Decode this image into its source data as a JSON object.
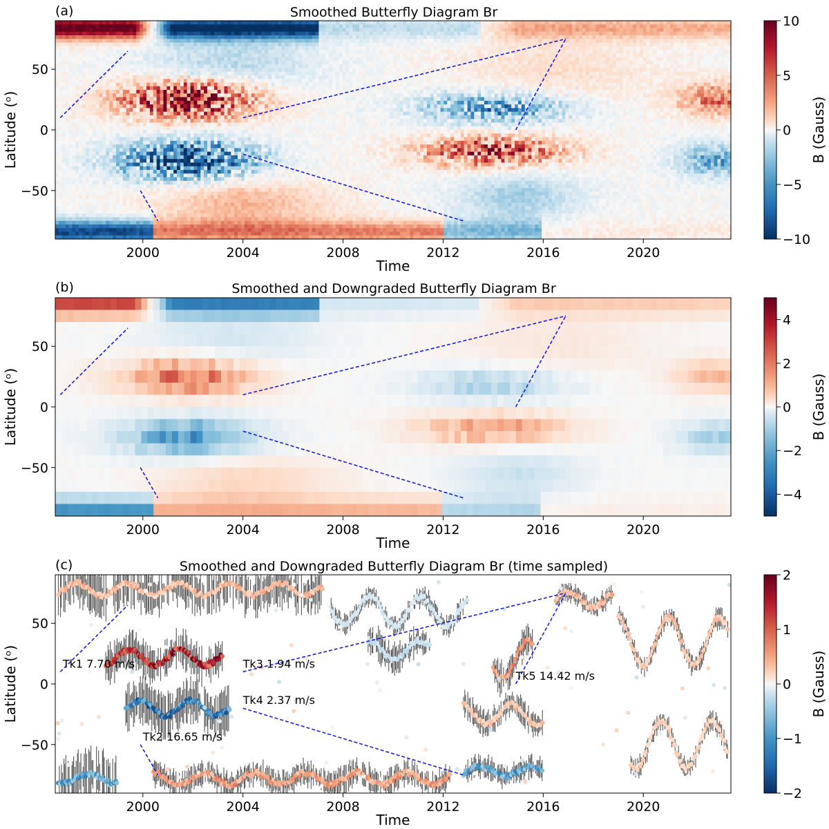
{
  "figure": {
    "panel_a": {
      "label": "(a)",
      "title": "Smoothed Butterfly Diagram Br",
      "xlabel": "Time",
      "ylabel": "Latitude (ᵒ)",
      "xticks": [
        "2000",
        "2004",
        "2008",
        "2012",
        "2016",
        "2020"
      ],
      "yticks": [
        "50",
        "0",
        "−50"
      ],
      "colorbar": {
        "label": "B (Gauss)",
        "ticks": [
          "10",
          "5",
          "0",
          "−5",
          "−10"
        ]
      }
    },
    "panel_b": {
      "label": "(b)",
      "title": "Smoothed and Downgraded Butterfly Diagram Br",
      "xlabel": "Time",
      "ylabel": "Latitude (ᵒ)",
      "xticks": [
        "2000",
        "2004",
        "2008",
        "2012",
        "2016",
        "2020"
      ],
      "yticks": [
        "50",
        "0",
        "−50"
      ],
      "colorbar": {
        "label": "B (Gauss)",
        "ticks": [
          "4",
          "2",
          "0",
          "−2",
          "−4"
        ]
      }
    },
    "panel_c": {
      "label": "(c)",
      "title": "Smoothed and Downgraded Butterfly Diagram Br (time sampled)",
      "xlabel": "Time",
      "ylabel": "Latitude (ᵒ)",
      "xticks": [
        "2000",
        "2004",
        "2008",
        "2012",
        "2016",
        "2020"
      ],
      "yticks": [
        "50",
        "0",
        "−50"
      ],
      "colorbar": {
        "label": "B (Gauss)",
        "ticks": [
          "2",
          "1",
          "0",
          "−1",
          "−2"
        ]
      },
      "annotations": [
        "Tk1 7.70 m/s",
        "Tk2 16.65 m/s",
        "Tk3 1.94 m/s",
        "Tk4 2.37 m/s",
        "Tk5 14.42 m/s"
      ]
    }
  },
  "chart_data": [
    {
      "type": "heatmap",
      "panel": "a",
      "title": "Smoothed Butterfly Diagram Br",
      "xlabel": "Time",
      "ylabel": "Latitude (ᵒ)",
      "xlim": [
        1996.5,
        2023.5
      ],
      "ylim": [
        -90,
        90
      ],
      "clim": [
        -10,
        10
      ],
      "cmap": "RdBu_r",
      "tracks": [
        {
          "name": "Tk1",
          "x": [
            1996.7,
            1999.4
          ],
          "y": [
            10,
            65
          ]
        },
        {
          "name": "Tk2",
          "x": [
            1999.9,
            2000.6
          ],
          "y": [
            -50,
            -75
          ]
        },
        {
          "name": "Tk3",
          "x": [
            2004.0,
            2016.9
          ],
          "y": [
            10,
            75
          ]
        },
        {
          "name": "Tk4",
          "x": [
            2004.0,
            2012.8
          ],
          "y": [
            -20,
            -75
          ]
        },
        {
          "name": "Tk5",
          "x": [
            2014.9,
            2016.9
          ],
          "y": [
            0,
            75
          ]
        }
      ]
    },
    {
      "type": "heatmap",
      "panel": "b",
      "title": "Smoothed and Downgraded Butterfly Diagram Br",
      "xlabel": "Time",
      "ylabel": "Latitude (ᵒ)",
      "xlim": [
        1996.5,
        2023.5
      ],
      "ylim": [
        -90,
        90
      ],
      "clim": [
        -5,
        5
      ],
      "cmap": "RdBu_r",
      "tracks": [
        {
          "name": "Tk1",
          "x": [
            1996.7,
            1999.4
          ],
          "y": [
            10,
            65
          ]
        },
        {
          "name": "Tk2",
          "x": [
            1999.9,
            2000.6
          ],
          "y": [
            -50,
            -75
          ]
        },
        {
          "name": "Tk3",
          "x": [
            2004.0,
            2016.9
          ],
          "y": [
            10,
            75
          ]
        },
        {
          "name": "Tk4",
          "x": [
            2004.0,
            2012.8
          ],
          "y": [
            -20,
            -75
          ]
        },
        {
          "name": "Tk5",
          "x": [
            2014.9,
            2016.9
          ],
          "y": [
            0,
            75
          ]
        }
      ]
    },
    {
      "type": "scatter",
      "panel": "c",
      "title": "Smoothed and Downgraded Butterfly Diagram Br (time sampled)",
      "xlabel": "Time",
      "ylabel": "Latitude (ᵒ)",
      "xlim": [
        1996.5,
        2023.5
      ],
      "ylim": [
        -90,
        90
      ],
      "clim": [
        -2,
        2
      ],
      "cmap": "RdBu_r",
      "tracks": [
        {
          "name": "Tk1",
          "speed": "7.70 m/s",
          "x": [
            1996.7,
            1999.4
          ],
          "y": [
            10,
            65
          ]
        },
        {
          "name": "Tk2",
          "speed": "16.65 m/s",
          "x": [
            1999.9,
            2000.6
          ],
          "y": [
            -50,
            -75
          ]
        },
        {
          "name": "Tk3",
          "speed": "1.94 m/s",
          "x": [
            2004.0,
            2016.9
          ],
          "y": [
            10,
            75
          ]
        },
        {
          "name": "Tk4",
          "speed": "2.37 m/s",
          "x": [
            2004.0,
            2012.8
          ],
          "y": [
            -20,
            -75
          ]
        },
        {
          "name": "Tk5",
          "speed": "14.42 m/s",
          "x": [
            2014.9,
            2016.9
          ],
          "y": [
            0,
            75
          ]
        }
      ]
    }
  ]
}
